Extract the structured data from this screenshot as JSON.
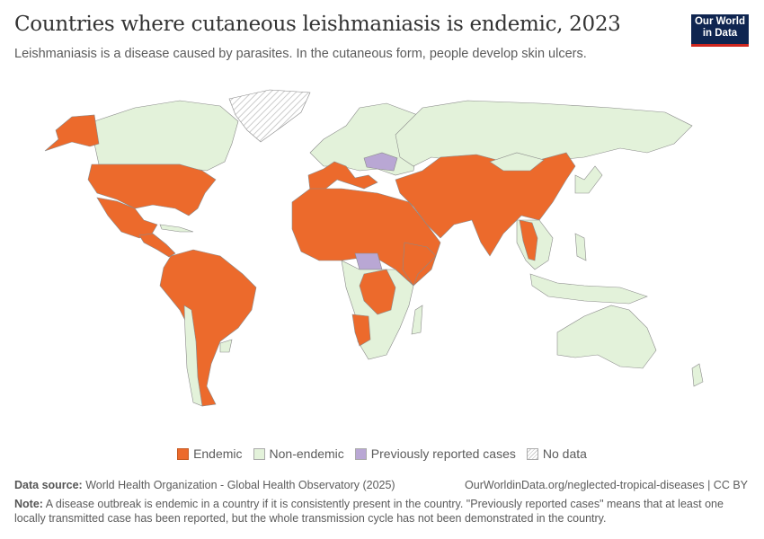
{
  "header": {
    "title": "Countries where cutaneous leishmaniasis is endemic, 2023",
    "subtitle": "Leishmaniasis is a disease caused by parasites. In the cutaneous form, people develop skin ulcers.",
    "logo": [
      "Our World",
      "in Data"
    ]
  },
  "colors": {
    "endemic": "#ec6a2c",
    "non_endemic": "#e3f2da",
    "previously_reported": "#b9a7d4",
    "no_data": "hatched",
    "border": "#8a8a8a"
  },
  "legend": [
    {
      "label": "Endemic",
      "key": "endemic"
    },
    {
      "label": "Non-endemic",
      "key": "non_endemic"
    },
    {
      "label": "Previously reported cases",
      "key": "previously_reported"
    },
    {
      "label": "No data",
      "key": "no_data"
    }
  ],
  "footer": {
    "source_label": "Data source:",
    "source": "World Health Organization - Global Health Observatory (2025)",
    "url": "OurWorldinData.org/neglected-tropical-diseases | CC BY",
    "note_label": "Note:",
    "note": "A disease outbreak is endemic in a country if it is consistently present in the country. \"Previously reported cases\" means that at least one locally transmitted case has been reported, but the whole transmission cycle has not been demonstrated in the country."
  }
}
